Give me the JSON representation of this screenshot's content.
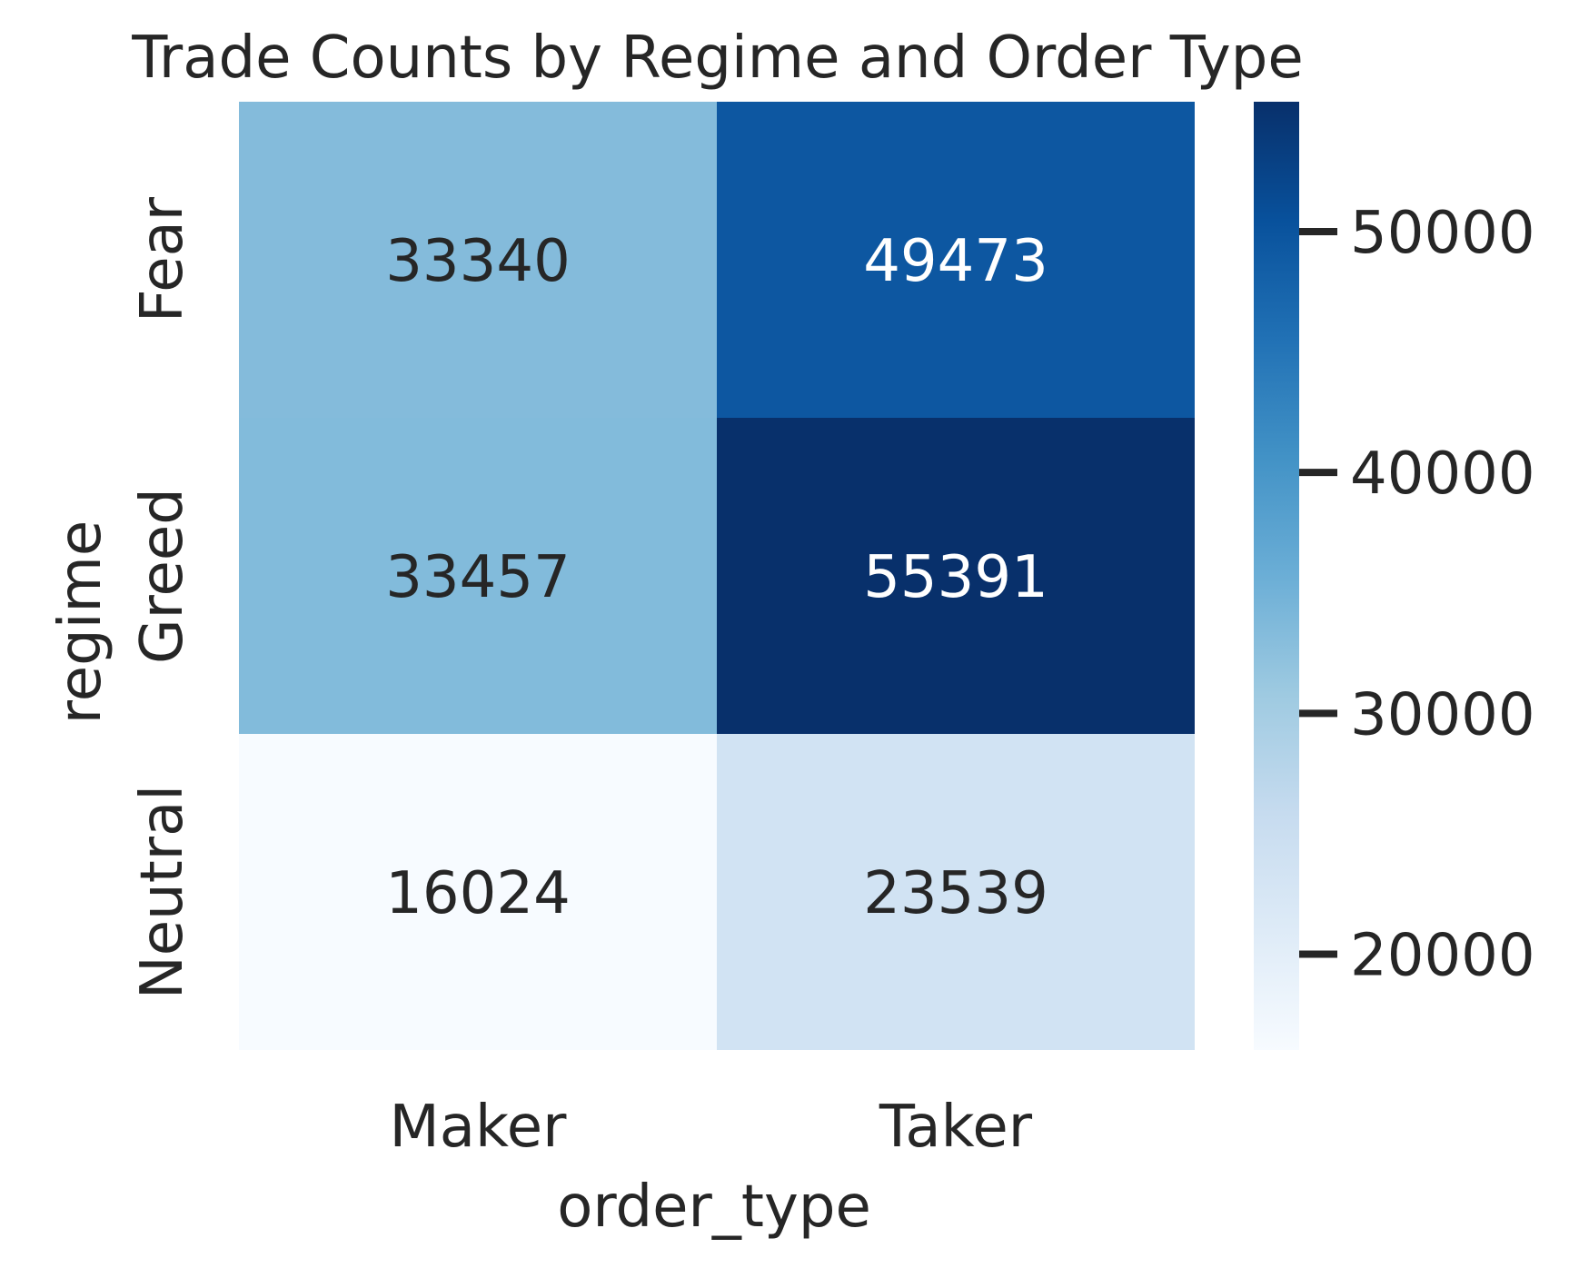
{
  "chart_data": {
    "type": "heatmap",
    "title": "Trade Counts by Regime and Order Type",
    "xlabel": "order_type",
    "ylabel": "regime",
    "x_categories": [
      "Maker",
      "Taker"
    ],
    "y_categories": [
      "Fear",
      "Greed",
      "Neutral"
    ],
    "values": [
      [
        33340,
        49473
      ],
      [
        33457,
        55391
      ],
      [
        16024,
        23539
      ]
    ],
    "colormap": "Blues",
    "colorbar": {
      "ticks": [
        20000,
        30000,
        40000,
        50000
      ],
      "range": [
        16024,
        55391
      ]
    },
    "annotation_colors": {
      "dark": "#262626",
      "light": "#ffffff"
    }
  }
}
